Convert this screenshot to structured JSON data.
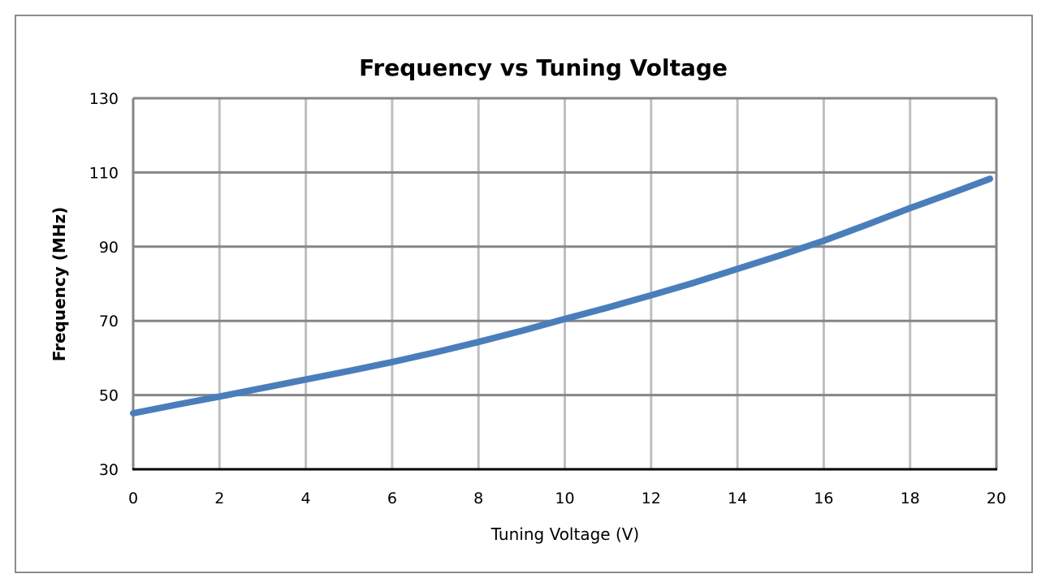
{
  "chart_data": {
    "type": "line",
    "title": "Frequency vs Tuning Voltage",
    "xlabel": "Tuning Voltage (V)",
    "ylabel": "Frequency (MHz)",
    "xlim": [
      0,
      20
    ],
    "ylim": [
      30,
      130
    ],
    "xticks": [
      "0",
      "2",
      "4",
      "6",
      "8",
      "10",
      "12",
      "14",
      "16",
      "18",
      "20"
    ],
    "yticks": [
      "30",
      "50",
      "70",
      "90",
      "110",
      "130"
    ],
    "grid": true,
    "legend": "none",
    "series": [
      {
        "color": "#4a7ebb",
        "x": [
          0,
          1,
          2,
          3,
          4,
          5,
          6,
          7,
          8,
          9,
          10,
          11,
          12,
          13,
          14,
          15,
          16,
          17,
          18,
          19,
          19.85
        ],
        "y": [
          45.1,
          47.4,
          49.6,
          51.9,
          54.2,
          56.5,
          58.9,
          61.5,
          64.3,
          67.3,
          70.5,
          73.6,
          76.9,
          80.3,
          84.0,
          87.7,
          91.6,
          95.9,
          100.4,
          104.6,
          108.3
        ]
      }
    ]
  }
}
